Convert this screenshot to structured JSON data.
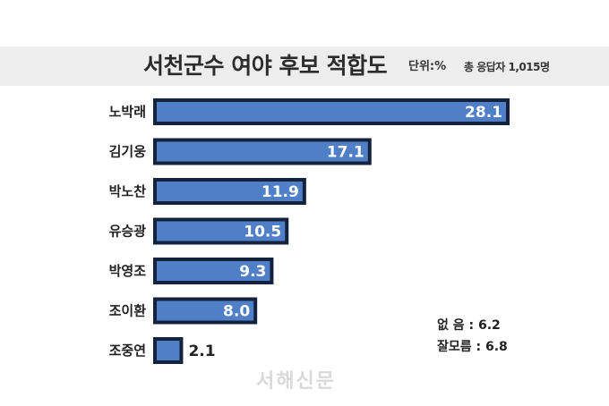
{
  "header": {
    "title": "서천군수 여야 후보 적합도",
    "unit": "단위:%",
    "respondents": "총 응답자 1,015명"
  },
  "notes": [
    {
      "label": "없   음",
      "value": "6.2"
    },
    {
      "label": "잘모름",
      "value": "6.8"
    }
  ],
  "watermark": "서해신문",
  "colors": {
    "bar_fill": "#4f7fc6",
    "bar_border": "#14223d",
    "header_bg": "#ededed"
  },
  "chart_data": {
    "type": "bar",
    "orientation": "horizontal",
    "title": "서천군수 여야 후보 적합도",
    "categories": [
      "노박래",
      "김기웅",
      "박노찬",
      "유승광",
      "박영조",
      "조이환",
      "조중연"
    ],
    "values": [
      28.1,
      17.1,
      11.9,
      10.5,
      9.3,
      8.0,
      2.1
    ],
    "value_labels": [
      "28.1",
      "17.1",
      "11.9",
      "10.5",
      "9.3",
      "8.0",
      "2.1"
    ],
    "xlabel": "",
    "ylabel": "",
    "xlim": [
      0,
      28.1
    ],
    "grid": false,
    "legend": "none"
  }
}
